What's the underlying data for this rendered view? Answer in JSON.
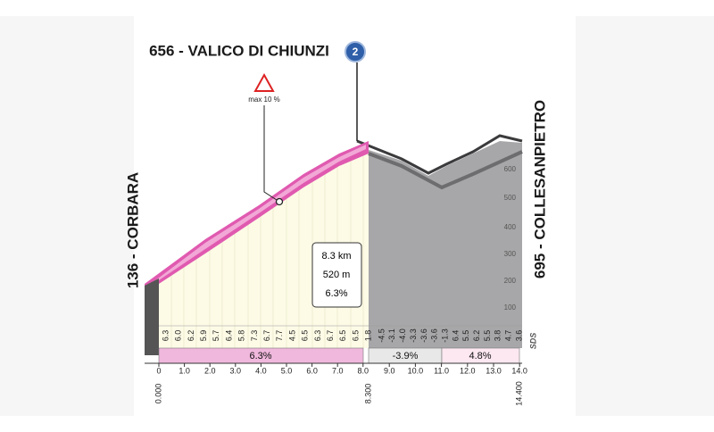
{
  "header": {
    "title": "656 - VALICO DI CHIUNZI",
    "badge": "2"
  },
  "start": "136 - CORBARA",
  "finish": "695 - COLLESANPIETRO",
  "warning": "max 10 %",
  "summary": [
    "8.3 km",
    "520 m",
    "6.3%"
  ],
  "elevation_axis": [
    "100",
    "200",
    "300",
    "400",
    "500",
    "600"
  ],
  "gradients": [
    "6.3",
    "6.0",
    "6.2",
    "5.9",
    "5.7",
    "6.4",
    "5.8",
    "7.3",
    "6.7",
    "7.7",
    "4.5",
    "6.5",
    "6.3",
    "6.7",
    "6.5",
    "6.5",
    "1.8",
    "-4.5",
    "-3.1",
    "-4.0",
    "-3.3",
    "-3.6",
    "-3.6",
    "-1.3",
    "6.4",
    "5.5",
    "6.2",
    "5.5",
    "3.8",
    "4.7",
    "3.6"
  ],
  "segments": [
    "6.3%",
    "-3.9%",
    "4.8%"
  ],
  "km_axis": [
    "0",
    "1.0",
    "2.0",
    "3.0",
    "4.0",
    "5.0",
    "6.0",
    "7.0",
    "8.0",
    "9.0",
    "10.0",
    "11.0",
    "12.0",
    "13.0",
    "14.0"
  ],
  "distance_marks": [
    "0.000",
    "8.300",
    "14.400"
  ],
  "logo": "SDS"
}
